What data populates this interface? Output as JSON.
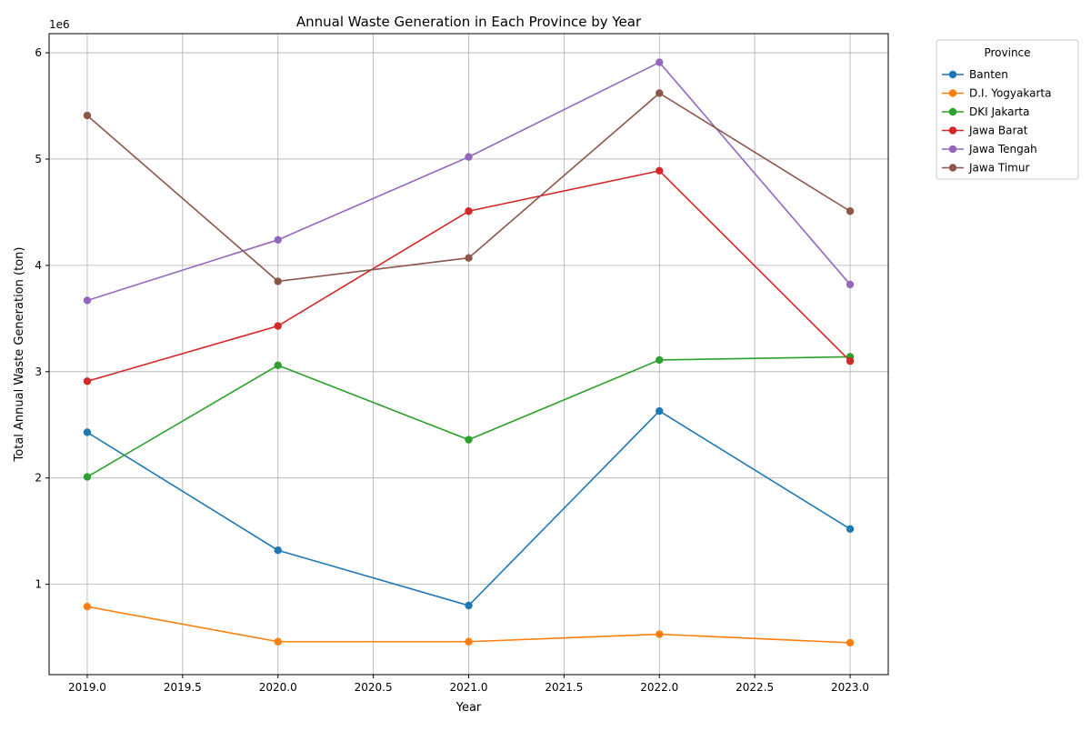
{
  "chart_data": {
    "type": "line",
    "title": "Annual Waste Generation in Each Province by Year",
    "xlabel": "Year",
    "ylabel": "Total Annual Waste Generation (ton)",
    "offset_text": "1e6",
    "x": [
      2019,
      2020,
      2021,
      2022,
      2023
    ],
    "xlim": [
      2018.8,
      2023.2
    ],
    "ylim": [
      0.15,
      6.18
    ],
    "y_scale_multiplier": 1000000,
    "x_ticks": [
      2019.0,
      2019.5,
      2020.0,
      2020.5,
      2021.0,
      2021.5,
      2022.0,
      2022.5,
      2023.0
    ],
    "x_tick_labels": [
      "2019.0",
      "2019.5",
      "2020.0",
      "2020.5",
      "2021.0",
      "2021.5",
      "2022.0",
      "2022.5",
      "2023.0"
    ],
    "y_ticks": [
      1,
      2,
      3,
      4,
      5,
      6
    ],
    "y_tick_labels": [
      "1",
      "2",
      "3",
      "4",
      "5",
      "6"
    ],
    "grid": true,
    "legend": {
      "title": "Province",
      "placement": "outside-upper-right"
    },
    "series": [
      {
        "name": "Banten",
        "color": "#1f77b4",
        "values": [
          2.43,
          1.32,
          0.8,
          2.63,
          1.52
        ]
      },
      {
        "name": "D.I. Yogyakarta",
        "color": "#ff7f0e",
        "values": [
          0.79,
          0.46,
          0.46,
          0.53,
          0.45
        ]
      },
      {
        "name": "DKI Jakarta",
        "color": "#2ca02c",
        "values": [
          2.01,
          3.06,
          2.36,
          3.11,
          3.14
        ]
      },
      {
        "name": "Jawa Barat",
        "color": "#d62728",
        "values": [
          2.91,
          3.43,
          4.51,
          4.89,
          3.1
        ]
      },
      {
        "name": "Jawa Tengah",
        "color": "#9467bd",
        "values": [
          3.67,
          4.24,
          5.02,
          5.91,
          3.82
        ]
      },
      {
        "name": "Jawa Timur",
        "color": "#8c564b",
        "values": [
          5.41,
          3.85,
          4.07,
          5.62,
          4.51
        ]
      }
    ]
  }
}
